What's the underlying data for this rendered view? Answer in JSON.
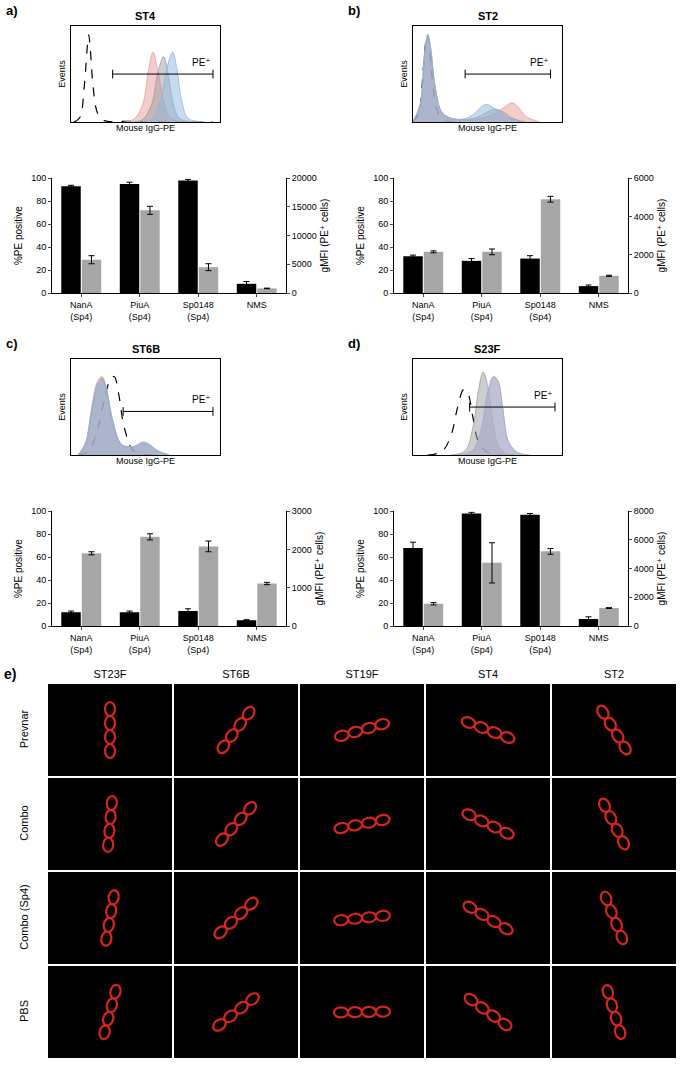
{
  "chart_data": [
    {
      "label": "a)",
      "title": "ST4",
      "type": "bar",
      "histogram": {
        "type": "line",
        "x_label": "Mouse IgG-PE",
        "y_label": "Events",
        "xlim": [
          0,
          100
        ],
        "ylim": [
          0,
          110
        ],
        "tick_labels": false,
        "gate": {
          "label": "PE⁺",
          "from": 28,
          "to": 95,
          "y": 55
        },
        "series": [
          {
            "color": "#000000",
            "line_style": "dashed",
            "x": [
              2,
              6,
              9,
              11,
              12,
              13,
              15,
              18,
              22,
              40,
              60,
              95
            ],
            "values": [
              0,
              5,
              40,
              85,
              100,
              85,
              40,
              10,
              2,
              1,
              0,
              0
            ]
          },
          {
            "color": "#e89a9a",
            "line_style": "solid",
            "x": [
              35,
              42,
              48,
              52,
              55,
              58,
              62,
              66,
              72,
              80
            ],
            "values": [
              0,
              3,
              20,
              60,
              80,
              60,
              25,
              6,
              1,
              0
            ]
          },
          {
            "color": "#9e9e9e",
            "line_style": "solid",
            "x": [
              40,
              48,
              54,
              58,
              62,
              65,
              68,
              72,
              78,
              85
            ],
            "values": [
              0,
              3,
              20,
              55,
              75,
              55,
              25,
              5,
              1,
              0
            ]
          },
          {
            "color": "#8db6e2",
            "line_style": "solid",
            "x": [
              45,
              54,
              60,
              64,
              68,
              71,
              74,
              78,
              84,
              90
            ],
            "values": [
              0,
              3,
              25,
              60,
              80,
              60,
              25,
              5,
              1,
              0
            ]
          }
        ]
      },
      "categories": [
        "NanA (Sp4)",
        "PiuA (Sp4)",
        "Sp0148 (Sp4)",
        "NMS"
      ],
      "y_label": "%PE positive",
      "y2_label": "gMFI (PE⁺ cells)",
      "ylim": [
        0,
        100
      ],
      "yticks": [
        0,
        20,
        40,
        60,
        80,
        100
      ],
      "y2lim": [
        0,
        20000
      ],
      "y2ticks": [
        0,
        5000,
        10000,
        15000,
        20000
      ],
      "grid": false,
      "series": [
        {
          "color": "#000000",
          "axis": "y",
          "values": [
            93,
            95,
            98,
            8
          ],
          "errors": [
            0.8,
            1.5,
            1,
            2
          ]
        },
        {
          "color": "#a6a6a6",
          "axis": "y2",
          "values": [
            5800,
            14400,
            4500,
            800
          ],
          "errors": [
            700,
            700,
            600,
            50
          ]
        }
      ]
    },
    {
      "label": "b)",
      "title": "ST2",
      "type": "bar",
      "histogram": {
        "type": "line",
        "x_label": "Mouse IgG-PE",
        "y_label": "Events",
        "xlim": [
          0,
          100
        ],
        "ylim": [
          0,
          110
        ],
        "tick_labels": false,
        "gate": {
          "label": "PE⁺",
          "from": 35,
          "to": 92,
          "y": 55
        },
        "series": [
          {
            "color": "#000000",
            "line_style": "dashed",
            "x": [
              0,
              4,
              7,
              9,
              10,
              11,
              13,
              16,
              20,
              30
            ],
            "values": [
              0,
              10,
              60,
              95,
              100,
              90,
              50,
              15,
              3,
              0
            ]
          },
          {
            "color": "#e89a9a",
            "line_style": "solid",
            "x": [
              0,
              5,
              8,
              10,
              12,
              15,
              20,
              30,
              45,
              55,
              62,
              66,
              70,
              76,
              85
            ],
            "values": [
              0,
              20,
              80,
              100,
              85,
              40,
              10,
              3,
              4,
              10,
              18,
              22,
              18,
              6,
              0
            ]
          },
          {
            "color": "#9e9e9e",
            "line_style": "solid",
            "x": [
              0,
              5,
              8,
              10,
              12,
              15,
              20,
              30,
              42,
              50,
              55,
              60,
              66,
              75
            ],
            "values": [
              0,
              20,
              80,
              98,
              80,
              40,
              10,
              3,
              5,
              12,
              15,
              12,
              5,
              0
            ]
          },
          {
            "color": "#8db6e2",
            "line_style": "solid",
            "x": [
              0,
              5,
              8,
              10,
              12,
              15,
              20,
              30,
              40,
              46,
              50,
              55,
              62,
              72
            ],
            "values": [
              0,
              20,
              80,
              100,
              85,
              40,
              10,
              3,
              8,
              18,
              20,
              15,
              6,
              0
            ]
          }
        ]
      },
      "categories": [
        "NanA (Sp4)",
        "PiuA (Sp4)",
        "Sp0148 (Sp4)",
        "NMS"
      ],
      "y_label": "%PE positive",
      "y2_label": "gMFI (PE⁺ cells)",
      "ylim": [
        0,
        100
      ],
      "yticks": [
        0,
        20,
        40,
        60,
        80,
        100
      ],
      "y2lim": [
        0,
        6000
      ],
      "y2ticks": [
        0,
        2000,
        4000,
        6000
      ],
      "grid": false,
      "series": [
        {
          "color": "#000000",
          "axis": "y",
          "values": [
            32,
            28,
            30,
            6
          ],
          "errors": [
            1,
            2,
            2.5,
            1
          ]
        },
        {
          "color": "#a6a6a6",
          "axis": "y2",
          "values": [
            2150,
            2150,
            4900,
            900
          ],
          "errors": [
            50,
            150,
            150,
            30
          ]
        }
      ]
    },
    {
      "label": "c)",
      "title": "ST6B",
      "type": "bar",
      "histogram": {
        "type": "line",
        "x_label": "Mouse IgG-PE",
        "y_label": "Events",
        "xlim": [
          0,
          100
        ],
        "ylim": [
          0,
          110
        ],
        "tick_labels": false,
        "gate": {
          "label": "PE⁺",
          "from": 35,
          "to": 95,
          "y": 50
        },
        "series": [
          {
            "color": "#000000",
            "line_style": "dashed",
            "x": [
              5,
              12,
              18,
              22,
              26,
              29,
              32,
              36,
              42,
              55
            ],
            "values": [
              0,
              5,
              30,
              60,
              85,
              90,
              70,
              30,
              5,
              0
            ]
          },
          {
            "color": "#e89a9a",
            "line_style": "solid",
            "x": [
              5,
              10,
              14,
              18,
              21,
              24,
              28,
              34,
              42,
              48,
              52,
              58,
              66
            ],
            "values": [
              0,
              15,
              55,
              85,
              90,
              75,
              40,
              12,
              10,
              14,
              12,
              5,
              0
            ]
          },
          {
            "color": "#9e9e9e",
            "line_style": "solid",
            "x": [
              5,
              10,
              14,
              18,
              21,
              24,
              28,
              34,
              42,
              48,
              52,
              58,
              66
            ],
            "values": [
              0,
              12,
              50,
              80,
              88,
              72,
              38,
              12,
              9,
              13,
              12,
              5,
              0
            ]
          },
          {
            "color": "#8db6e2",
            "line_style": "solid",
            "x": [
              5,
              10,
              14,
              18,
              21,
              24,
              28,
              34,
              42,
              48,
              52,
              58,
              66
            ],
            "values": [
              0,
              14,
              52,
              82,
              86,
              74,
              40,
              12,
              10,
              15,
              13,
              5,
              0
            ]
          }
        ]
      },
      "categories": [
        "NanA (Sp4)",
        "PiuA (Sp4)",
        "Sp0148 (Sp4)",
        "NMS"
      ],
      "y_label": "%PE positive",
      "y2_label": "gMFI (PE⁺ cells)",
      "ylim": [
        0,
        100
      ],
      "yticks": [
        0,
        20,
        40,
        60,
        80,
        100
      ],
      "y2lim": [
        0,
        3000
      ],
      "y2ticks": [
        0,
        1000,
        2000,
        3000
      ],
      "grid": false,
      "series": [
        {
          "color": "#000000",
          "axis": "y",
          "values": [
            12,
            12,
            13,
            5
          ],
          "errors": [
            1,
            1,
            2,
            0.5
          ]
        },
        {
          "color": "#a6a6a6",
          "axis": "y2",
          "values": [
            1900,
            2330,
            2080,
            1110
          ],
          "errors": [
            40,
            80,
            140,
            30
          ]
        }
      ]
    },
    {
      "label": "d)",
      "title": "S23F",
      "type": "bar",
      "histogram": {
        "type": "line",
        "x_label": "Mouse IgG-PE",
        "y_label": "Events",
        "xlim": [
          0,
          100
        ],
        "ylim": [
          0,
          110
        ],
        "tick_labels": false,
        "gate": {
          "label": "PE⁺",
          "from": 38,
          "to": 95,
          "y": 55
        },
        "series": [
          {
            "color": "#000000",
            "line_style": "dashed",
            "x": [
              10,
              20,
              26,
              30,
              34,
              37,
              40,
              44,
              50,
              60
            ],
            "values": [
              0,
              5,
              25,
              55,
              75,
              70,
              45,
              15,
              3,
              0
            ]
          },
          {
            "color": "#9e9e9e",
            "line_style": "solid",
            "x": [
              25,
              35,
              40,
              44,
              47,
              50,
              53,
              57,
              62,
              70
            ],
            "values": [
              0,
              5,
              30,
              75,
              95,
              80,
              45,
              12,
              2,
              0
            ]
          },
          {
            "color": "#e89a9a",
            "line_style": "solid",
            "x": [
              30,
              40,
              46,
              50,
              54,
              57,
              60,
              64,
              70,
              78
            ],
            "values": [
              0,
              5,
              30,
              70,
              90,
              85,
              55,
              15,
              3,
              0
            ]
          },
          {
            "color": "#8db6e2",
            "line_style": "solid",
            "x": [
              30,
              40,
              46,
              50,
              54,
              57,
              60,
              64,
              70,
              78
            ],
            "values": [
              0,
              5,
              32,
              72,
              90,
              84,
              54,
              15,
              3,
              0
            ]
          }
        ]
      },
      "categories": [
        "NanA (Sp4)",
        "PiuA (Sp4)",
        "Sp0148 (Sp4)",
        "NMS"
      ],
      "y_label": "%PE positive",
      "y2_label": "gMFI (PE⁺ cells)",
      "ylim": [
        0,
        100
      ],
      "yticks": [
        0,
        20,
        40,
        60,
        80,
        100
      ],
      "y2lim": [
        0,
        8000
      ],
      "y2ticks": [
        0,
        2000,
        4000,
        6000,
        8000
      ],
      "grid": false,
      "series": [
        {
          "color": "#000000",
          "axis": "y",
          "values": [
            68,
            98,
            97,
            6
          ],
          "errors": [
            5,
            1,
            1,
            2
          ]
        },
        {
          "color": "#a6a6a6",
          "axis": "y2",
          "values": [
            1550,
            4400,
            5200,
            1250
          ],
          "errors": [
            80,
            1400,
            200,
            30
          ]
        }
      ]
    }
  ],
  "panel_e": {
    "label": "e)",
    "columns": [
      "ST23F",
      "ST6B",
      "ST19F",
      "ST4",
      "ST2"
    ],
    "rows": [
      "Prevnar",
      "Combo",
      "Combo (Sp4)",
      "PBS"
    ]
  }
}
